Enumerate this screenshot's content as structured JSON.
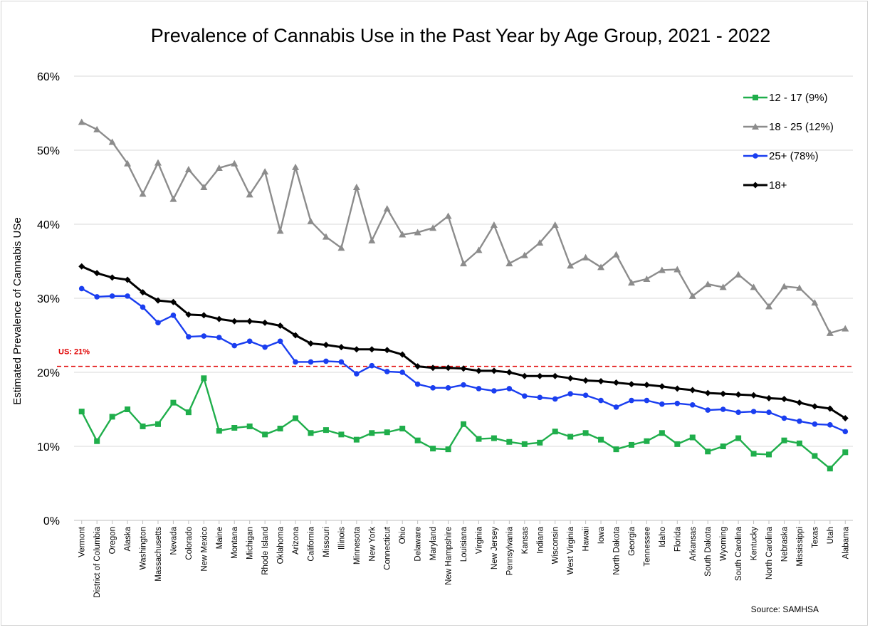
{
  "chart_data": {
    "type": "line",
    "title": "Prevalence of Cannabis Use in the Past Year by Age Group, 2021 - 2022",
    "xlabel": "",
    "ylabel": "Estimated Prevalence of Cannabis USe",
    "ylim": [
      0,
      60
    ],
    "yticks": [
      "0%",
      "10%",
      "20%",
      "30%",
      "40%",
      "50%",
      "60%"
    ],
    "grid": true,
    "legend_position": "top-right",
    "source": "Source: SAMHSA",
    "reference_line": {
      "label": "US: 21%",
      "value": 20.8,
      "color": "#e00000"
    },
    "categories": [
      "Vermont",
      "District of Columbia",
      "Oregon",
      "Alaska",
      "Washington",
      "Massachusetts",
      "Nevada",
      "Colorado",
      "New Mexico",
      "Maine",
      "Montana",
      "Michigan",
      "Rhode Island",
      "Oklahoma",
      "Arizona",
      "California",
      "Missouri",
      "Illinois",
      "Minnesota",
      "New York",
      "Connecticut",
      "Ohio",
      "Delaware",
      "Maryland",
      "New Hampshire",
      "Louisiana",
      "Virginia",
      "New Jersey",
      "Pennsylvania",
      "Kansas",
      "Indiana",
      "Wisconsin",
      "West Virginia",
      "Hawaii",
      "Iowa",
      "North Dakota",
      "Georgia",
      "Tennessee",
      "Idaho",
      "Florida",
      "Arkansas",
      "South Dakota",
      "Wyoming",
      "South Carolina",
      "Kentucky",
      "North Carolina",
      "Nebraska",
      "Mississippi",
      "Texas",
      "Utah",
      "Alabama"
    ],
    "series": [
      {
        "name": "12 - 17 (9%)",
        "color": "#1fae4b",
        "marker": "square",
        "values": [
          14.7,
          10.7,
          14.0,
          15.0,
          12.7,
          13.0,
          15.9,
          14.6,
          19.2,
          12.1,
          12.5,
          12.7,
          11.6,
          12.4,
          13.8,
          11.8,
          12.2,
          11.6,
          10.9,
          11.8,
          11.9,
          12.4,
          10.8,
          9.7,
          9.6,
          13.0,
          11.0,
          11.1,
          10.6,
          10.3,
          10.5,
          12.0,
          11.3,
          11.8,
          10.9,
          9.6,
          10.2,
          10.7,
          11.8,
          10.3,
          11.2,
          9.3,
          10.0,
          11.1,
          9.0,
          8.9,
          10.8,
          10.4,
          8.7,
          7.0,
          9.2
        ]
      },
      {
        "name": "18 - 25 (12%)",
        "color": "#8c8c8c",
        "marker": "triangle",
        "values": [
          53.8,
          52.8,
          51.1,
          48.2,
          44.1,
          48.3,
          43.4,
          47.4,
          45.0,
          47.6,
          48.2,
          44.0,
          47.1,
          39.1,
          47.7,
          40.4,
          38.3,
          36.8,
          45.0,
          37.8,
          42.1,
          38.6,
          38.9,
          39.5,
          41.1,
          34.7,
          36.5,
          39.9,
          34.7,
          35.8,
          37.5,
          39.9,
          34.4,
          35.5,
          34.2,
          35.9,
          32.1,
          32.6,
          33.8,
          33.9,
          30.3,
          31.9,
          31.5,
          33.2,
          31.5,
          28.9,
          31.6,
          31.4,
          29.4,
          25.3,
          25.9
        ]
      },
      {
        "name": "25+ (78%)",
        "color": "#1a3ef0",
        "marker": "circle",
        "values": [
          31.3,
          30.2,
          30.3,
          30.3,
          28.8,
          26.7,
          27.7,
          24.8,
          24.9,
          24.7,
          23.6,
          24.2,
          23.4,
          24.2,
          21.4,
          21.4,
          21.5,
          21.4,
          19.8,
          20.9,
          20.1,
          20.0,
          18.4,
          17.9,
          17.9,
          18.3,
          17.8,
          17.5,
          17.8,
          16.8,
          16.6,
          16.4,
          17.1,
          16.9,
          16.2,
          15.3,
          16.2,
          16.2,
          15.7,
          15.8,
          15.6,
          14.9,
          15.0,
          14.6,
          14.7,
          14.6,
          13.8,
          13.4,
          13.0,
          12.9,
          12.0
        ]
      },
      {
        "name": "18+",
        "color": "#000000",
        "marker": "diamond",
        "values": [
          34.3,
          33.4,
          32.8,
          32.5,
          30.8,
          29.7,
          29.5,
          27.8,
          27.7,
          27.2,
          26.9,
          26.9,
          26.7,
          26.3,
          25.0,
          23.9,
          23.7,
          23.4,
          23.1,
          23.1,
          23.0,
          22.4,
          20.8,
          20.6,
          20.6,
          20.5,
          20.2,
          20.2,
          20.0,
          19.5,
          19.5,
          19.5,
          19.2,
          18.9,
          18.8,
          18.6,
          18.4,
          18.3,
          18.1,
          17.8,
          17.6,
          17.2,
          17.1,
          17.0,
          16.9,
          16.5,
          16.4,
          15.9,
          15.4,
          15.1,
          13.8
        ]
      }
    ]
  }
}
